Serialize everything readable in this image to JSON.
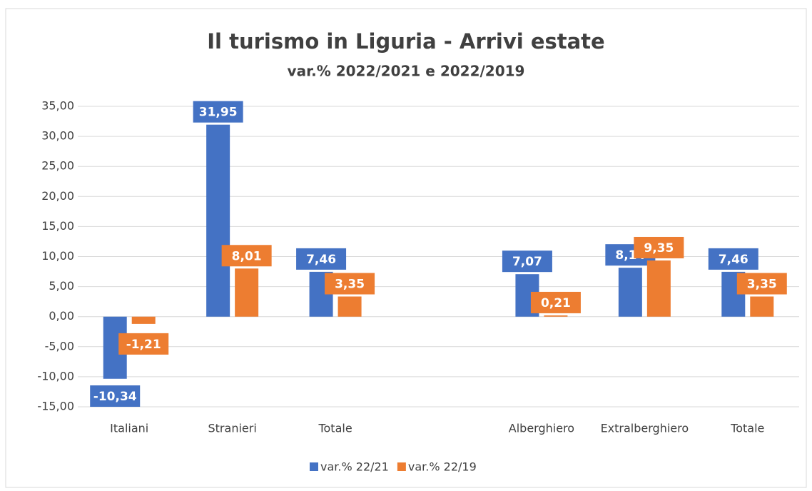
{
  "chart_data": {
    "type": "bar",
    "title": "Il turismo in Liguria - Arrivi estate",
    "subtitle": "var.% 2022/2021 e 2022/2019",
    "categories": [
      "Italiani",
      "Stranieri",
      "Totale",
      null,
      "Alberghiero",
      "Extralberghiero",
      "Totale"
    ],
    "series": [
      {
        "name": "var.% 22/21",
        "color": "#4472c4",
        "values": [
          -10.34,
          31.95,
          7.46,
          null,
          7.07,
          8.14,
          7.46
        ],
        "value_labels": [
          "-10,34",
          "31,95",
          "7,46",
          null,
          "7,07",
          "8,14",
          "7,46"
        ]
      },
      {
        "name": "var.% 22/19",
        "color": "#ed7d31",
        "values": [
          -1.21,
          8.01,
          3.35,
          null,
          0.21,
          9.35,
          3.35
        ],
        "value_labels": [
          "-1,21",
          "8,01",
          "3,35",
          null,
          "0,21",
          "9,35",
          "3,35"
        ]
      }
    ],
    "ylim": [
      -15,
      35
    ],
    "yticks": [
      {
        "value": -15,
        "label": "-15,00"
      },
      {
        "value": -10,
        "label": "-10,00"
      },
      {
        "value": -5,
        "label": "-5,00"
      },
      {
        "value": 0,
        "label": "0,00"
      },
      {
        "value": 5,
        "label": "5,00"
      },
      {
        "value": 10,
        "label": "10,00"
      },
      {
        "value": 15,
        "label": "15,00"
      },
      {
        "value": 20,
        "label": "20,00"
      },
      {
        "value": 25,
        "label": "25,00"
      },
      {
        "value": 30,
        "label": "30,00"
      },
      {
        "value": 35,
        "label": "35,00"
      }
    ],
    "grid": true,
    "legend": "bottom"
  }
}
